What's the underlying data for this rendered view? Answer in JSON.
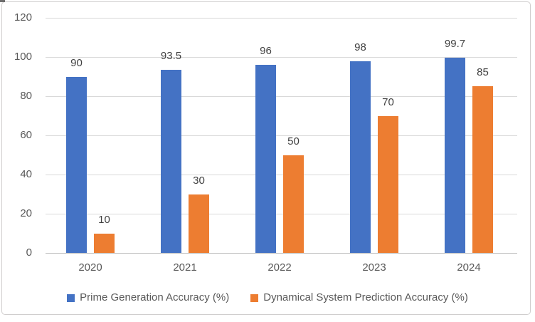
{
  "chart_data": {
    "type": "bar",
    "title": "",
    "xlabel": "",
    "ylabel": "",
    "categories": [
      "2020",
      "2021",
      "2022",
      "2023",
      "2024"
    ],
    "series": [
      {
        "name": "Prime Generation Accuracy (%)",
        "color": "#4472C4",
        "values": [
          90,
          93.5,
          96,
          98,
          99.7
        ],
        "labels": [
          "90",
          "93.5",
          "96",
          "98",
          "99.7"
        ]
      },
      {
        "name": "Dynamical System Prediction Accuracy (%)",
        "color": "#ED7D31",
        "values": [
          10,
          30,
          50,
          70,
          85
        ],
        "labels": [
          "10",
          "30",
          "50",
          "70",
          "85"
        ]
      }
    ],
    "ylim": [
      0,
      120
    ],
    "yticks": [
      0,
      20,
      40,
      60,
      80,
      100,
      120
    ],
    "ytick_labels": [
      "0",
      "20",
      "40",
      "60",
      "80",
      "100",
      "120"
    ],
    "grid": true,
    "data_labels": true,
    "legend_position": "bottom"
  },
  "colors": {
    "gridline": "#d9d9d9",
    "axis_line": "#bfbfbf",
    "tick_text": "#595959",
    "data_label_text": "#404040",
    "legend_text": "#595959",
    "frame_border": "#d0cece",
    "background": "#ffffff"
  }
}
